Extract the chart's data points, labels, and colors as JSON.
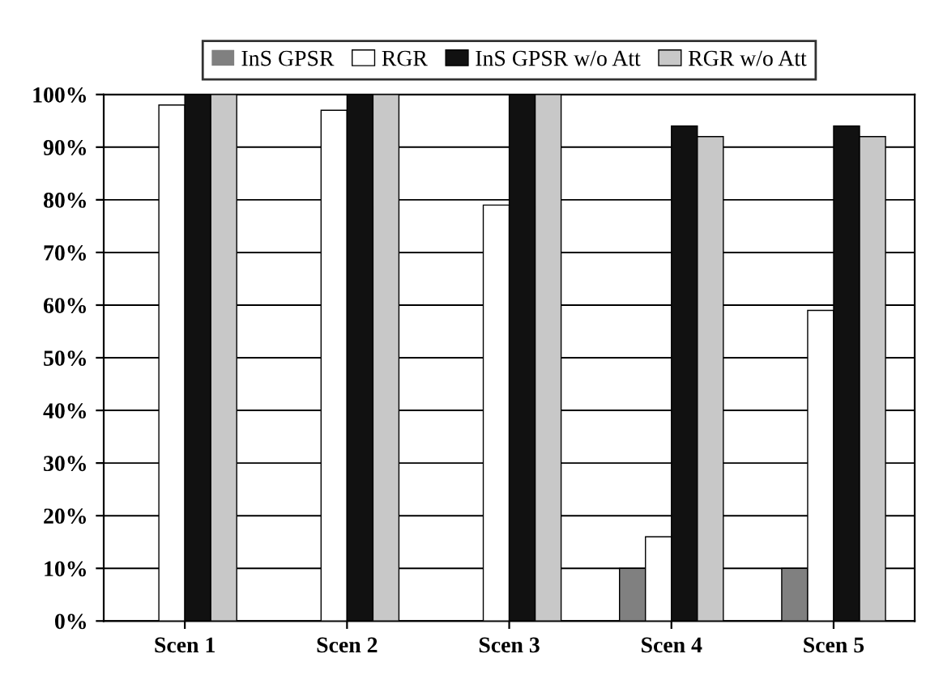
{
  "chart_data": {
    "type": "bar",
    "categories": [
      "Scen 1",
      "Scen 2",
      "Scen 3",
      "Scen 4",
      "Scen 5"
    ],
    "series": [
      {
        "name": "InS GPSR",
        "color": "#808080",
        "values": [
          0,
          0,
          0,
          10,
          10
        ]
      },
      {
        "name": "RGR",
        "color": "#ffffff",
        "values": [
          98,
          97,
          79,
          16,
          59
        ]
      },
      {
        "name": "InS GPSR w/o Att",
        "color": "#111111",
        "values": [
          100,
          100,
          100,
          94,
          94
        ]
      },
      {
        "name": "RGR w/o Att",
        "color": "#c8c8c8",
        "values": [
          100,
          100,
          100,
          92,
          92
        ]
      }
    ],
    "ylim": [
      0,
      100
    ],
    "yticks": [
      {
        "value": 0,
        "label": "0%"
      },
      {
        "value": 10,
        "label": "10%"
      },
      {
        "value": 20,
        "label": "20%"
      },
      {
        "value": 30,
        "label": "30%"
      },
      {
        "value": 40,
        "label": "40%"
      },
      {
        "value": 50,
        "label": "50%"
      },
      {
        "value": 60,
        "label": "60%"
      },
      {
        "value": 70,
        "label": "70%"
      },
      {
        "value": 80,
        "label": "80%"
      },
      {
        "value": 90,
        "label": "90%"
      },
      {
        "value": 100,
        "label": "100%"
      }
    ],
    "grid": "y",
    "legend": "top"
  }
}
